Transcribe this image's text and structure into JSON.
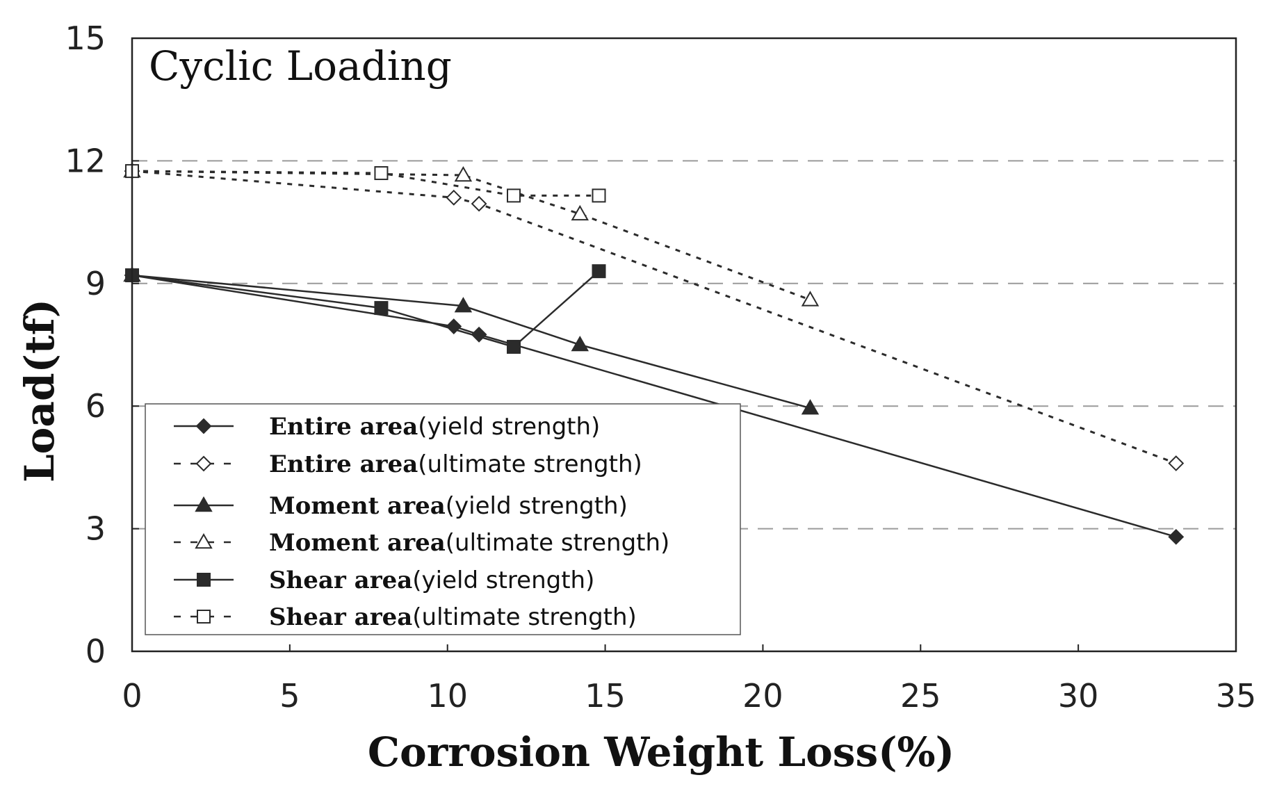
{
  "chart_data": {
    "type": "line",
    "title": "Cyclic Loading",
    "xlabel": "Corrosion Weight Loss(%)",
    "ylabel": "Load(tf)",
    "xlim": [
      0,
      35
    ],
    "ylim": [
      0,
      15
    ],
    "xticks": [
      "0",
      "5",
      "10",
      "15",
      "20",
      "25",
      "30",
      "35"
    ],
    "yticks": [
      "0",
      "3",
      "6",
      "9",
      "12",
      "15"
    ],
    "grid": "horizontal dashed",
    "legend_position": "lower-left",
    "series": [
      {
        "name": "Entire area(yield strength)",
        "name_main": "Entire area",
        "name_sub": "(yield strength)",
        "marker": "diamond",
        "filled": true,
        "dashed": false,
        "x": [
          0,
          10.2,
          11,
          33.1
        ],
        "y": [
          9.2,
          7.95,
          7.75,
          2.8
        ]
      },
      {
        "name": "Entire area(ultimate strength)",
        "name_main": "Entire area",
        "name_sub": "(ultimate strength)",
        "marker": "diamond",
        "filled": false,
        "dashed": true,
        "x": [
          0,
          10.2,
          11,
          33.1
        ],
        "y": [
          11.75,
          11.1,
          10.95,
          4.6
        ]
      },
      {
        "name": "Moment area(yield strength)",
        "name_main": "Moment area",
        "name_sub": "(yield strength)",
        "marker": "triangle",
        "filled": true,
        "dashed": false,
        "x": [
          0,
          10.5,
          14.2,
          21.5
        ],
        "y": [
          9.2,
          8.45,
          7.5,
          5.95
        ]
      },
      {
        "name": "Moment area(ultimate strength)",
        "name_main": "Moment area",
        "name_sub": "(ultimate strength)",
        "marker": "triangle",
        "filled": false,
        "dashed": true,
        "x": [
          0,
          10.5,
          14.2,
          21.5
        ],
        "y": [
          11.75,
          11.65,
          10.7,
          8.6
        ]
      },
      {
        "name": "Shear area(yield strength)",
        "name_main": "Shear area",
        "name_sub": "(yield strength)",
        "marker": "square",
        "filled": true,
        "dashed": false,
        "x": [
          0,
          7.9,
          12.1,
          14.8
        ],
        "y": [
          9.2,
          8.4,
          7.45,
          9.3
        ]
      },
      {
        "name": "Shear area(ultimate strength)",
        "name_main": "Shear area",
        "name_sub": "(ultimate strength)",
        "marker": "square",
        "filled": false,
        "dashed": true,
        "x": [
          0,
          7.9,
          12.1,
          14.8
        ],
        "y": [
          11.75,
          11.7,
          11.15,
          11.15
        ]
      }
    ]
  },
  "colors": {
    "line": "#2b2b2b",
    "grid": "#9a9a9a",
    "axis": "#222222"
  }
}
